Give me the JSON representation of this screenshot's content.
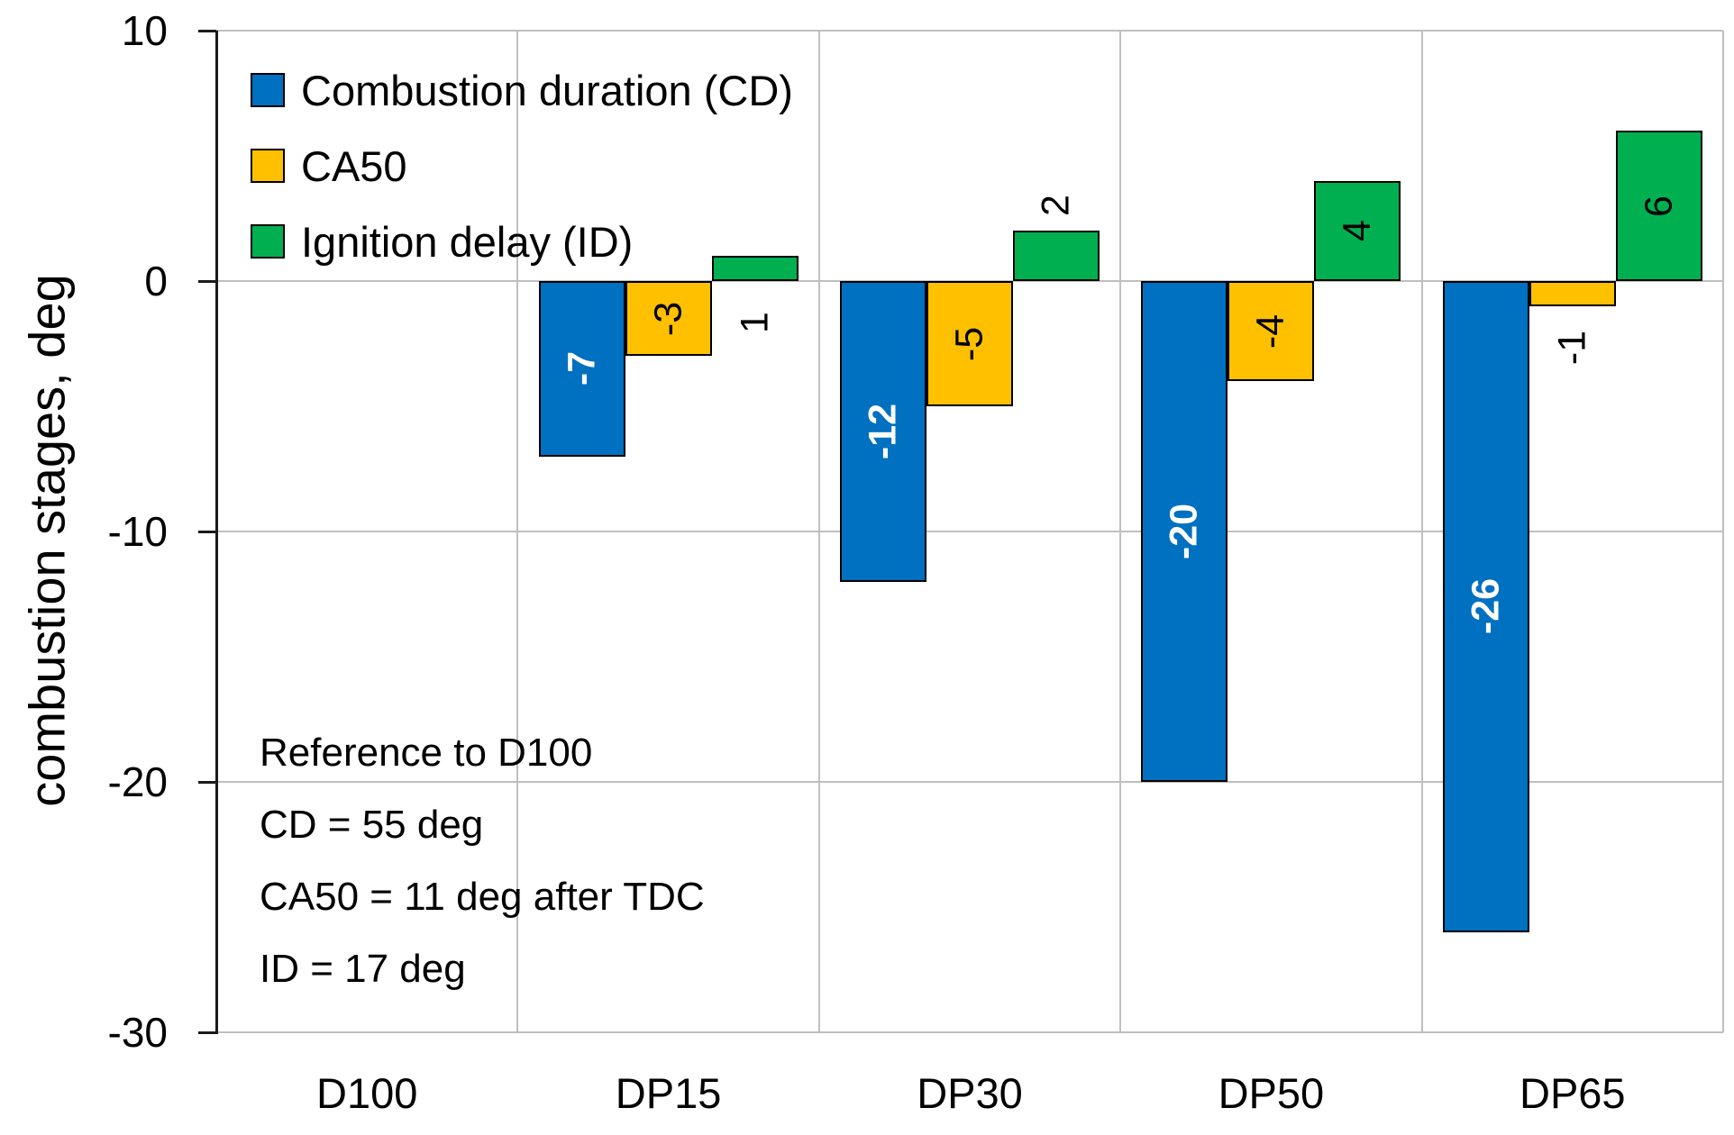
{
  "chart_data": {
    "type": "bar",
    "title": "",
    "xlabel": "",
    "ylabel": "combustion stages, deg",
    "ylim": [
      -30,
      10
    ],
    "y_ticks": [
      10,
      0,
      -10,
      -20,
      -30
    ],
    "grid": true,
    "legend_position": "top-left-inside",
    "categories": [
      "D100",
      "DP15",
      "DP30",
      "DP50",
      "DP65"
    ],
    "series": [
      {
        "name": "Combustion duration (CD)",
        "color": "#0070C0",
        "label_color": "white",
        "values": [
          null,
          -7,
          -12,
          -20,
          -26
        ],
        "labels": [
          "",
          "-7",
          "-12",
          "-20",
          "-26"
        ],
        "label_pos": [
          "none",
          "center",
          "center",
          "center",
          "center"
        ]
      },
      {
        "name": "CA50",
        "color": "#FFC000",
        "label_color": "black",
        "values": [
          null,
          -3,
          -5,
          -4,
          -1
        ],
        "labels": [
          "",
          "-3",
          "-5",
          "-4",
          "-1"
        ],
        "label_pos": [
          "none",
          "center",
          "center",
          "center",
          "below"
        ]
      },
      {
        "name": "Ignition delay (ID)",
        "color": "#00B050",
        "label_color": "black",
        "values": [
          null,
          1,
          2,
          4,
          6
        ],
        "labels": [
          "",
          "1",
          "2",
          "4",
          "6"
        ],
        "label_pos": [
          "none",
          "below",
          "above",
          "center",
          "center"
        ]
      }
    ],
    "annotation_lines": [
      "Reference to D100",
      "CD = 55 deg",
      "CA50 = 11 deg after TDC",
      "ID = 17 deg"
    ],
    "colors": {
      "gridline": "#BFBFBF",
      "axis": "#1A1A1A",
      "bar_border": "#000000",
      "background": "#FFFFFF"
    }
  }
}
